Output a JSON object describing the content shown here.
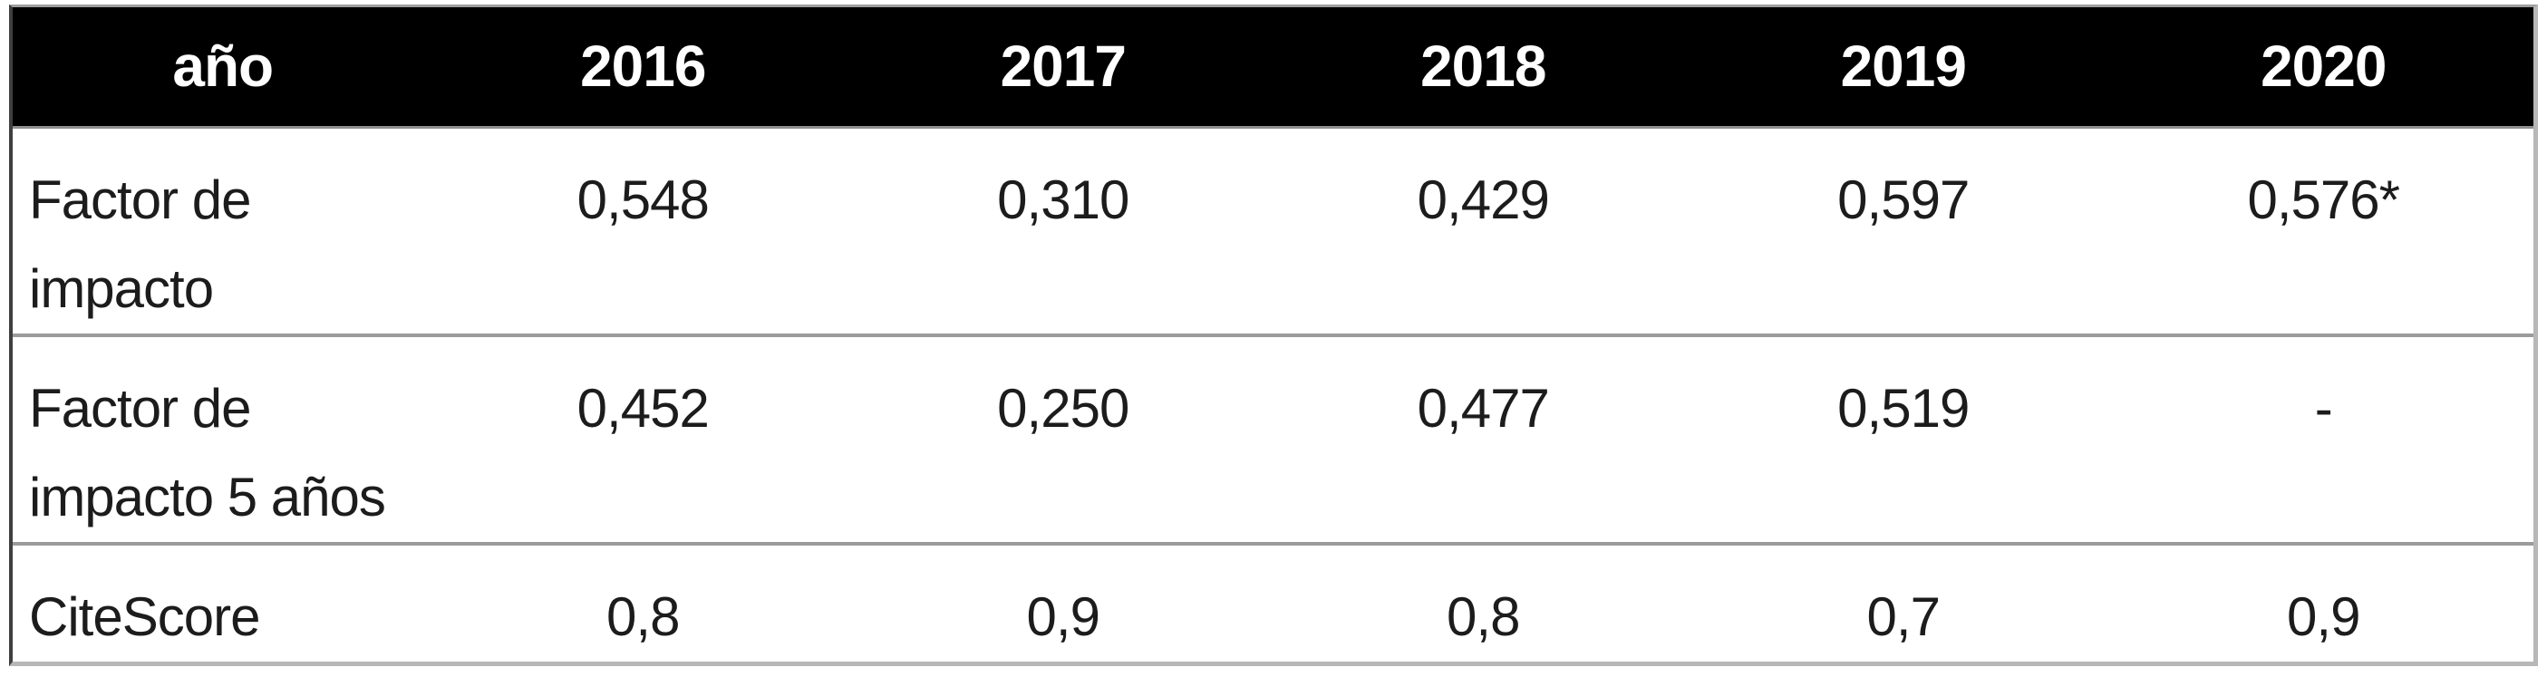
{
  "chart_data": {
    "type": "table",
    "categories": [
      "2016",
      "2017",
      "2018",
      "2019",
      "2020"
    ],
    "series": [
      {
        "name": "Factor de impacto",
        "values": [
          "0,548",
          "0,310",
          "0,429",
          "0,597",
          "0,576*"
        ]
      },
      {
        "name": "Factor de impacto 5 años",
        "values": [
          "0,452",
          "0,250",
          "0,477",
          "0,519",
          "-"
        ]
      },
      {
        "name": "CiteScore",
        "values": [
          "0,8",
          "0,9",
          "0,8",
          "0,7",
          "0,9"
        ]
      }
    ],
    "title": "",
    "corner_label": "año",
    "layout": "first column = metric name, header row black with white bold text, no vertical gridlines, gray horizontal separators",
    "decimal_style": "comma"
  },
  "table": {
    "header": [
      "año",
      "2016",
      "2017",
      "2018",
      "2019",
      "2020"
    ],
    "rows": [
      {
        "label": "Factor de\nimpacto",
        "cells": [
          "0,548",
          "0,310",
          "0,429",
          "0,597",
          "0,576*"
        ]
      },
      {
        "label": "Factor de\nimpacto 5 años",
        "cells": [
          "0,452",
          "0,250",
          "0,477",
          "0,519",
          "-"
        ]
      },
      {
        "label": "CiteScore",
        "cells": [
          "0,8",
          "0,9",
          "0,8",
          "0,7",
          "0,9"
        ]
      }
    ]
  },
  "colors": {
    "header_bg": "#000000",
    "header_text": "#ffffff",
    "body_text": "#1c1c1c",
    "separator": "#9b9b9b",
    "border_light": "#b7b7b7",
    "border_dark": "#3f3f3f",
    "page_bg": "#ffffff"
  }
}
